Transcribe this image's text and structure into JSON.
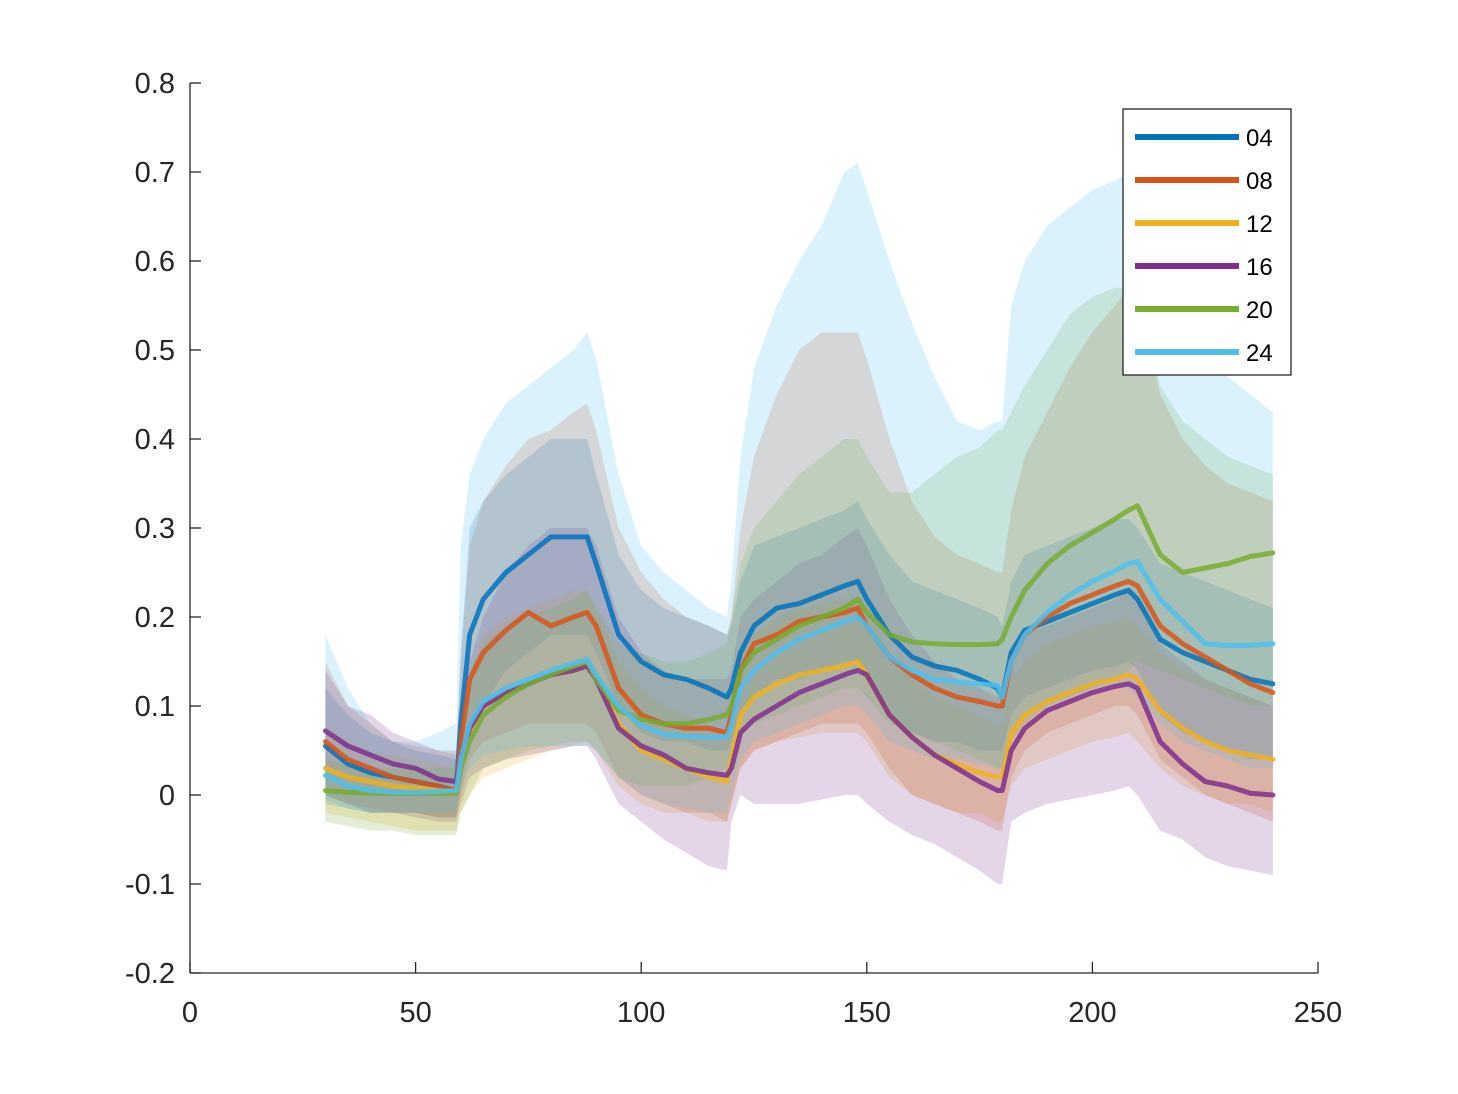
{
  "chart_data": {
    "type": "line",
    "title": "",
    "xlabel": "",
    "ylabel": "",
    "xlim": [
      0,
      250
    ],
    "ylim": [
      -0.2,
      0.8
    ],
    "xticks": [
      0,
      50,
      100,
      150,
      200,
      250
    ],
    "yticks": [
      -0.2,
      -0.1,
      0,
      0.1,
      0.2,
      0.3,
      0.4,
      0.5,
      0.6,
      0.7,
      0.8
    ],
    "xtick_labels": [
      "0",
      "50",
      "100",
      "150",
      "200",
      "250"
    ],
    "ytick_labels": [
      "-0.2",
      "-0.1",
      "0",
      "0.1",
      "0.2",
      "0.3",
      "0.4",
      "0.5",
      "0.6",
      "0.7",
      "0.8"
    ],
    "grid": false,
    "legend_position": "top-right",
    "shaded_bands": true,
    "x": [
      30,
      35,
      40,
      45,
      50,
      55,
      59,
      60,
      62,
      65,
      70,
      75,
      80,
      85,
      88,
      90,
      95,
      100,
      105,
      110,
      115,
      119,
      120,
      122,
      125,
      130,
      135,
      140,
      145,
      148,
      150,
      155,
      160,
      165,
      170,
      175,
      179,
      180,
      182,
      185,
      190,
      195,
      200,
      205,
      208,
      210,
      215,
      220,
      225,
      230,
      235,
      240
    ],
    "series": [
      {
        "name": "04",
        "color": "#0072BD",
        "values": [
          0.055,
          0.035,
          0.025,
          0.02,
          0.015,
          0.01,
          0.005,
          0.08,
          0.18,
          0.22,
          0.25,
          0.27,
          0.29,
          0.29,
          0.29,
          0.26,
          0.18,
          0.15,
          0.135,
          0.13,
          0.12,
          0.11,
          0.12,
          0.16,
          0.19,
          0.21,
          0.215,
          0.225,
          0.235,
          0.24,
          0.22,
          0.18,
          0.155,
          0.145,
          0.14,
          0.13,
          0.12,
          0.11,
          0.16,
          0.185,
          0.195,
          0.205,
          0.215,
          0.225,
          0.23,
          0.22,
          0.175,
          0.16,
          0.15,
          0.14,
          0.13,
          0.125
        ],
        "lower": [
          -0.01,
          -0.015,
          -0.02,
          -0.02,
          -0.02,
          -0.025,
          -0.025,
          0.01,
          0.06,
          0.1,
          0.14,
          0.16,
          0.18,
          0.18,
          0.18,
          0.16,
          0.1,
          0.07,
          0.06,
          0.06,
          0.05,
          0.05,
          0.06,
          0.09,
          0.11,
          0.13,
          0.13,
          0.14,
          0.15,
          0.15,
          0.13,
          0.09,
          0.07,
          0.06,
          0.06,
          0.05,
          0.05,
          0.05,
          0.09,
          0.11,
          0.12,
          0.13,
          0.14,
          0.145,
          0.15,
          0.14,
          0.09,
          0.07,
          0.06,
          0.05,
          0.04,
          0.04
        ],
        "upper": [
          0.12,
          0.09,
          0.07,
          0.06,
          0.05,
          0.045,
          0.04,
          0.16,
          0.3,
          0.33,
          0.36,
          0.38,
          0.4,
          0.4,
          0.4,
          0.36,
          0.27,
          0.23,
          0.21,
          0.2,
          0.19,
          0.18,
          0.19,
          0.24,
          0.28,
          0.29,
          0.3,
          0.31,
          0.32,
          0.33,
          0.31,
          0.27,
          0.24,
          0.23,
          0.22,
          0.21,
          0.2,
          0.19,
          0.24,
          0.27,
          0.28,
          0.29,
          0.3,
          0.31,
          0.31,
          0.3,
          0.26,
          0.25,
          0.24,
          0.23,
          0.22,
          0.21
        ]
      },
      {
        "name": "08",
        "color": "#D95319",
        "values": [
          0.06,
          0.04,
          0.03,
          0.02,
          0.015,
          0.01,
          0.005,
          0.06,
          0.13,
          0.16,
          0.185,
          0.205,
          0.19,
          0.2,
          0.205,
          0.19,
          0.12,
          0.09,
          0.08,
          0.075,
          0.075,
          0.07,
          0.09,
          0.14,
          0.17,
          0.18,
          0.195,
          0.2,
          0.205,
          0.21,
          0.19,
          0.155,
          0.135,
          0.12,
          0.11,
          0.105,
          0.1,
          0.1,
          0.15,
          0.18,
          0.2,
          0.215,
          0.225,
          0.235,
          0.24,
          0.235,
          0.19,
          0.17,
          0.155,
          0.14,
          0.125,
          0.115
        ],
        "lower": [
          0.0,
          -0.01,
          -0.015,
          -0.02,
          -0.02,
          -0.025,
          -0.025,
          0.0,
          0.04,
          0.06,
          0.07,
          0.08,
          0.08,
          0.08,
          0.08,
          0.07,
          0.02,
          0.0,
          -0.01,
          -0.02,
          -0.02,
          -0.03,
          -0.01,
          0.03,
          0.05,
          0.06,
          0.07,
          0.08,
          0.08,
          0.08,
          0.07,
          0.03,
          0.0,
          -0.01,
          -0.02,
          -0.03,
          -0.04,
          -0.04,
          0.02,
          0.05,
          0.07,
          0.08,
          0.09,
          0.1,
          0.1,
          0.09,
          0.04,
          0.02,
          0.0,
          -0.01,
          -0.02,
          -0.03
        ],
        "upper": [
          0.15,
          0.1,
          0.08,
          0.06,
          0.055,
          0.05,
          0.045,
          0.15,
          0.28,
          0.33,
          0.37,
          0.4,
          0.41,
          0.43,
          0.44,
          0.41,
          0.3,
          0.25,
          0.22,
          0.2,
          0.19,
          0.18,
          0.2,
          0.3,
          0.38,
          0.45,
          0.5,
          0.52,
          0.52,
          0.52,
          0.49,
          0.4,
          0.33,
          0.29,
          0.27,
          0.26,
          0.25,
          0.25,
          0.32,
          0.38,
          0.43,
          0.48,
          0.52,
          0.55,
          0.57,
          0.56,
          0.45,
          0.4,
          0.37,
          0.35,
          0.34,
          0.33
        ]
      },
      {
        "name": "12",
        "color": "#EDB120",
        "values": [
          0.03,
          0.02,
          0.015,
          0.01,
          0.008,
          0.005,
          0.003,
          0.04,
          0.07,
          0.1,
          0.115,
          0.125,
          0.135,
          0.14,
          0.145,
          0.13,
          0.08,
          0.05,
          0.04,
          0.03,
          0.02,
          0.015,
          0.04,
          0.09,
          0.11,
          0.125,
          0.135,
          0.14,
          0.145,
          0.15,
          0.135,
          0.09,
          0.065,
          0.045,
          0.035,
          0.025,
          0.02,
          0.02,
          0.07,
          0.09,
          0.105,
          0.115,
          0.125,
          0.13,
          0.135,
          0.13,
          0.095,
          0.075,
          0.06,
          0.05,
          0.045,
          0.04
        ],
        "lower": [
          -0.02,
          -0.025,
          -0.03,
          -0.035,
          -0.04,
          -0.04,
          -0.04,
          -0.02,
          0.0,
          0.02,
          0.03,
          0.04,
          0.05,
          0.055,
          0.06,
          0.05,
          0.01,
          -0.01,
          -0.02,
          -0.02,
          -0.03,
          -0.03,
          -0.01,
          0.03,
          0.05,
          0.06,
          0.065,
          0.07,
          0.07,
          0.07,
          0.06,
          0.02,
          0.0,
          -0.01,
          -0.02,
          -0.02,
          -0.03,
          -0.03,
          0.01,
          0.03,
          0.04,
          0.05,
          0.06,
          0.065,
          0.07,
          0.06,
          0.03,
          0.01,
          0.0,
          -0.01,
          -0.01,
          -0.02
        ],
        "upper": [
          0.08,
          0.06,
          0.05,
          0.045,
          0.04,
          0.035,
          0.03,
          0.1,
          0.14,
          0.18,
          0.2,
          0.21,
          0.22,
          0.23,
          0.23,
          0.21,
          0.15,
          0.12,
          0.1,
          0.09,
          0.08,
          0.07,
          0.1,
          0.16,
          0.18,
          0.2,
          0.21,
          0.215,
          0.22,
          0.225,
          0.21,
          0.16,
          0.13,
          0.11,
          0.1,
          0.09,
          0.08,
          0.08,
          0.13,
          0.15,
          0.17,
          0.18,
          0.19,
          0.195,
          0.2,
          0.19,
          0.16,
          0.14,
          0.13,
          0.12,
          0.11,
          0.1
        ]
      },
      {
        "name": "16",
        "color": "#7E2F8E",
        "values": [
          0.072,
          0.055,
          0.045,
          0.035,
          0.03,
          0.018,
          0.015,
          0.04,
          0.075,
          0.1,
          0.115,
          0.125,
          0.135,
          0.14,
          0.145,
          0.13,
          0.075,
          0.055,
          0.045,
          0.03,
          0.025,
          0.022,
          0.03,
          0.07,
          0.085,
          0.1,
          0.115,
          0.125,
          0.135,
          0.14,
          0.135,
          0.09,
          0.065,
          0.045,
          0.03,
          0.015,
          0.005,
          0.005,
          0.05,
          0.075,
          0.095,
          0.105,
          0.115,
          0.122,
          0.125,
          0.12,
          0.06,
          0.035,
          0.015,
          0.01,
          0.002,
          0.0
        ],
        "lower": [
          0.0,
          -0.01,
          -0.02,
          -0.02,
          -0.025,
          -0.03,
          -0.03,
          -0.01,
          0.02,
          0.03,
          0.04,
          0.045,
          0.05,
          0.055,
          0.055,
          0.04,
          -0.01,
          -0.03,
          -0.05,
          -0.065,
          -0.08,
          -0.085,
          -0.03,
          0.0,
          -0.01,
          -0.01,
          -0.01,
          -0.005,
          0.0,
          0.0,
          -0.01,
          -0.03,
          -0.045,
          -0.055,
          -0.07,
          -0.085,
          -0.1,
          -0.1,
          -0.03,
          -0.02,
          -0.01,
          -0.005,
          0.0,
          0.005,
          0.01,
          0.0,
          -0.04,
          -0.05,
          -0.07,
          -0.08,
          -0.085,
          -0.09
        ],
        "upper": [
          0.14,
          0.1,
          0.09,
          0.07,
          0.06,
          0.05,
          0.05,
          0.1,
          0.15,
          0.2,
          0.25,
          0.28,
          0.3,
          0.3,
          0.3,
          0.28,
          0.2,
          0.16,
          0.14,
          0.13,
          0.13,
          0.13,
          0.14,
          0.2,
          0.22,
          0.24,
          0.26,
          0.27,
          0.29,
          0.3,
          0.28,
          0.22,
          0.18,
          0.15,
          0.13,
          0.12,
          0.11,
          0.11,
          0.16,
          0.18,
          0.19,
          0.2,
          0.21,
          0.22,
          0.23,
          0.22,
          0.17,
          0.15,
          0.13,
          0.12,
          0.11,
          0.1
        ]
      },
      {
        "name": "20",
        "color": "#77AC30",
        "values": [
          0.005,
          0.003,
          0.002,
          0.002,
          0.002,
          0.002,
          0.002,
          0.03,
          0.06,
          0.09,
          0.11,
          0.125,
          0.135,
          0.145,
          0.15,
          0.13,
          0.095,
          0.085,
          0.08,
          0.08,
          0.085,
          0.09,
          0.1,
          0.14,
          0.16,
          0.175,
          0.19,
          0.2,
          0.21,
          0.22,
          0.205,
          0.18,
          0.172,
          0.17,
          0.169,
          0.169,
          0.17,
          0.175,
          0.2,
          0.23,
          0.26,
          0.28,
          0.295,
          0.31,
          0.32,
          0.325,
          0.27,
          0.25,
          0.255,
          0.26,
          0.268,
          0.272
        ],
        "lower": [
          -0.03,
          -0.035,
          -0.04,
          -0.04,
          -0.045,
          -0.045,
          -0.045,
          -0.02,
          0.0,
          0.03,
          0.04,
          0.05,
          0.055,
          0.06,
          0.06,
          0.05,
          0.02,
          0.01,
          0.01,
          0.01,
          0.02,
          0.03,
          0.04,
          0.07,
          0.08,
          0.09,
          0.1,
          0.11,
          0.12,
          0.12,
          0.11,
          0.08,
          0.07,
          0.06,
          0.05,
          0.04,
          0.03,
          0.03,
          0.06,
          0.08,
          0.1,
          0.11,
          0.12,
          0.13,
          0.14,
          0.15,
          0.14,
          0.13,
          0.12,
          0.11,
          0.1,
          0.1
        ],
        "upper": [
          0.04,
          0.035,
          0.03,
          0.03,
          0.03,
          0.03,
          0.03,
          0.08,
          0.14,
          0.17,
          0.19,
          0.2,
          0.21,
          0.22,
          0.23,
          0.21,
          0.17,
          0.16,
          0.15,
          0.15,
          0.16,
          0.17,
          0.2,
          0.26,
          0.3,
          0.33,
          0.36,
          0.38,
          0.4,
          0.4,
          0.38,
          0.34,
          0.34,
          0.36,
          0.38,
          0.39,
          0.41,
          0.41,
          0.43,
          0.46,
          0.5,
          0.54,
          0.56,
          0.57,
          0.57,
          0.56,
          0.46,
          0.42,
          0.4,
          0.38,
          0.37,
          0.36
        ]
      },
      {
        "name": "24",
        "color": "#4DBEEE",
        "values": [
          0.022,
          0.01,
          0.005,
          0.003,
          0.003,
          0.004,
          0.005,
          0.04,
          0.08,
          0.105,
          0.12,
          0.13,
          0.14,
          0.148,
          0.152,
          0.135,
          0.1,
          0.078,
          0.068,
          0.066,
          0.065,
          0.065,
          0.08,
          0.12,
          0.14,
          0.16,
          0.175,
          0.185,
          0.195,
          0.2,
          0.19,
          0.155,
          0.14,
          0.13,
          0.127,
          0.125,
          0.123,
          0.11,
          0.15,
          0.18,
          0.205,
          0.225,
          0.24,
          0.252,
          0.26,
          0.262,
          0.22,
          0.195,
          0.17,
          0.168,
          0.168,
          0.17
        ],
        "lower": [
          -0.005,
          -0.015,
          -0.02,
          -0.02,
          -0.02,
          -0.02,
          -0.02,
          0.01,
          0.03,
          0.045,
          0.05,
          0.055,
          0.055,
          0.055,
          0.055,
          0.05,
          0.02,
          0.0,
          -0.01,
          -0.015,
          -0.02,
          -0.02,
          0.0,
          0.04,
          0.06,
          0.07,
          0.08,
          0.09,
          0.1,
          0.1,
          0.09,
          0.06,
          0.05,
          0.04,
          0.04,
          0.035,
          0.03,
          0.03,
          0.07,
          0.09,
          0.1,
          0.11,
          0.12,
          0.12,
          0.12,
          0.11,
          0.08,
          0.06,
          0.05,
          0.04,
          0.03,
          0.03
        ],
        "upper": [
          0.18,
          0.12,
          0.08,
          0.06,
          0.06,
          0.07,
          0.08,
          0.28,
          0.36,
          0.4,
          0.44,
          0.46,
          0.48,
          0.5,
          0.52,
          0.49,
          0.36,
          0.28,
          0.25,
          0.23,
          0.21,
          0.2,
          0.24,
          0.38,
          0.48,
          0.55,
          0.6,
          0.64,
          0.7,
          0.71,
          0.68,
          0.6,
          0.53,
          0.47,
          0.42,
          0.41,
          0.42,
          0.42,
          0.55,
          0.6,
          0.64,
          0.66,
          0.68,
          0.69,
          0.7,
          0.69,
          0.6,
          0.55,
          0.5,
          0.47,
          0.45,
          0.43
        ]
      }
    ]
  }
}
